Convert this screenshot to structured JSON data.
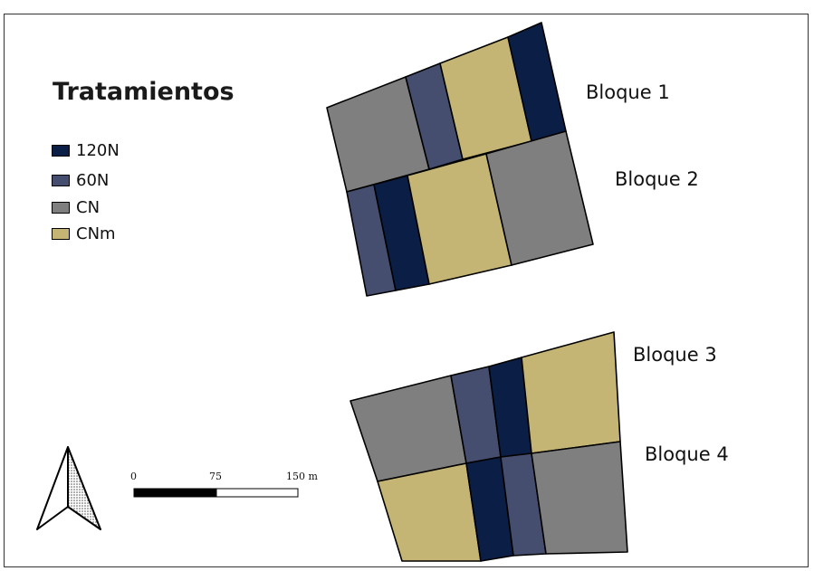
{
  "legend": {
    "title": "Tratamientos",
    "items": [
      {
        "label": "120N",
        "color": "#0b1e45"
      },
      {
        "label": "60N",
        "color": "#454e6e"
      },
      {
        "label": "CN",
        "color": "#7f7f7f"
      },
      {
        "label": "CNm",
        "color": "#c4b574"
      }
    ]
  },
  "blocks": [
    {
      "label": "Bloque 1",
      "plots": [
        "CN",
        "60N",
        "CNm",
        "120N"
      ]
    },
    {
      "label": "Bloque 2",
      "plots": [
        "60N",
        "120N",
        "CNm",
        "CN"
      ]
    },
    {
      "label": "Bloque 3",
      "plots": [
        "CN",
        "60N",
        "120N",
        "CNm"
      ]
    },
    {
      "label": "Bloque 4",
      "plots": [
        "CNm",
        "120N",
        "60N",
        "CN"
      ]
    }
  ],
  "scale_bar": {
    "ticks": [
      "0",
      "75",
      "150 m"
    ]
  },
  "north_arrow": {
    "icon": "north-arrow-icon"
  }
}
